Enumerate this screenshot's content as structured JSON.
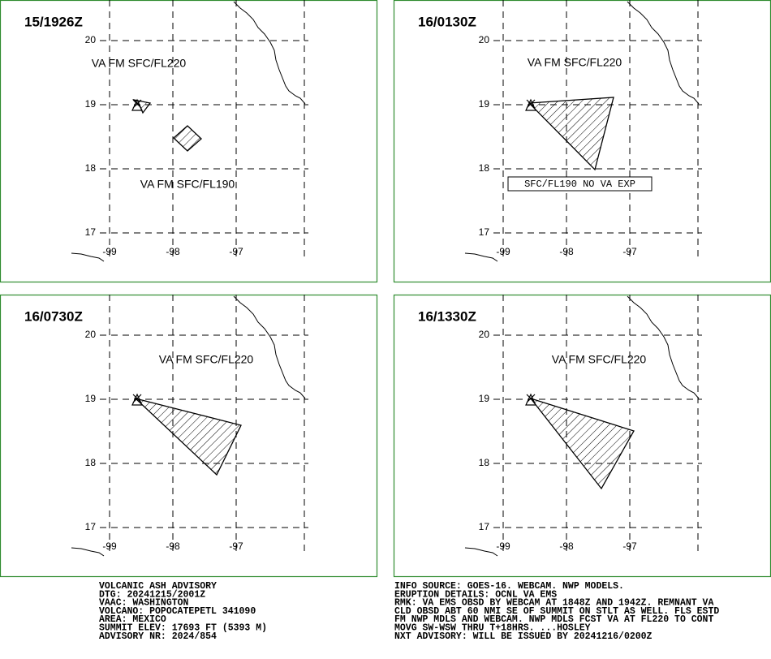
{
  "panels": [
    {
      "title": "15/1926Z",
      "labels": [
        "VA FM SFC/FL220",
        "VA FM SFC/FL190"
      ]
    },
    {
      "title": "16/0130Z",
      "labels": [
        "VA FM SFC/FL220"
      ],
      "note": "SFC/FL190 NO VA EXP"
    },
    {
      "title": "16/0730Z",
      "labels": [
        "VA FM SFC/FL220"
      ]
    },
    {
      "title": "16/1330Z",
      "labels": [
        "VA FM SFC/FL220"
      ]
    }
  ],
  "lat_ticks": [
    "20",
    "19",
    "18",
    "17"
  ],
  "lon_ticks": [
    "-99",
    "-98",
    "-97"
  ],
  "advisory_left": [
    "VOLCANIC ASH ADVISORY",
    "DTG: 20241215/2001Z",
    "VAAC: WASHINGTON",
    "VOLCANO: POPOCATEPETL 341090",
    "AREA: MEXICO",
    "SUMMIT ELEV: 17693 FT (5393 M)",
    "ADVISORY NR: 2024/854"
  ],
  "advisory_right": [
    "INFO SOURCE: GOES-16. WEBCAM. NWP MODELS.",
    "ERUPTION DETAILS: OCNL VA EMS",
    "RMK: VA EMS OBSD BY WEBCAM AT 1848Z AND 1942Z. REMNANT VA",
    "CLD OBSD ABT 60 NMI SE OF SUMMIT ON STLT AS WELL. FLS ESTD",
    "FM NWP MDLS AND WEBCAM. NWP MDLS FCST VA AT FL220 TO CONT",
    "MOVG SW-WSW THRU T+18HRS. ...HOSLEY",
    "NXT ADVISORY: WILL BE ISSUED BY 20241216/0200Z"
  ]
}
